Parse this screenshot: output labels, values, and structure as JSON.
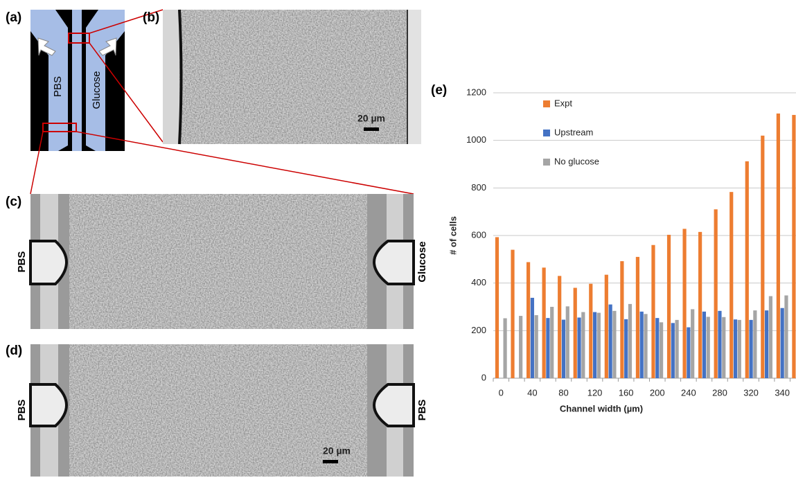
{
  "panels": {
    "a": {
      "label": "(a)",
      "left_inlet": "PBS",
      "right_inlet": "Glucose"
    },
    "b": {
      "label": "(b)",
      "scale_bar": "20 µm"
    },
    "c": {
      "label": "(c)",
      "left": "PBS",
      "right": "Glucose"
    },
    "d": {
      "label": "(d)",
      "left": "PBS",
      "right": "PBS",
      "scale_bar": "20 µm"
    }
  },
  "chart_data": {
    "type": "bar",
    "label": "(e)",
    "x_label": "Channel width (µm)",
    "y_label": "# of cells",
    "categories": [
      "0",
      null,
      "40",
      null,
      "80",
      null,
      "120",
      null,
      "160",
      null,
      "200",
      null,
      "240",
      null,
      "280",
      null,
      "320",
      null,
      "340",
      null
    ],
    "series": [
      {
        "name": "Expt",
        "color": "#ed7d31",
        "values": [
          593,
          540,
          488,
          465,
          430,
          380,
          397,
          435,
          492,
          510,
          560,
          603,
          628,
          615,
          710,
          783,
          912,
          1020,
          1113,
          1107
        ]
      },
      {
        "name": "Upstream",
        "color": "#4472c4",
        "values": [
          null,
          null,
          338,
          253,
          246,
          255,
          278,
          310,
          248,
          280,
          253,
          232,
          214,
          280,
          283,
          247,
          245,
          285,
          295,
          null
        ]
      },
      {
        "name": "No glucose",
        "color": "#a5a5a5",
        "values": [
          252,
          262,
          265,
          300,
          302,
          278,
          275,
          283,
          312,
          270,
          235,
          245,
          290,
          258,
          257,
          245,
          285,
          345,
          348,
          null
        ]
      }
    ],
    "ylim": [
      0,
      1200
    ],
    "yticks": [
      0,
      200,
      400,
      600,
      800,
      1000,
      1200
    ],
    "grid": true,
    "legend": "upper left"
  }
}
